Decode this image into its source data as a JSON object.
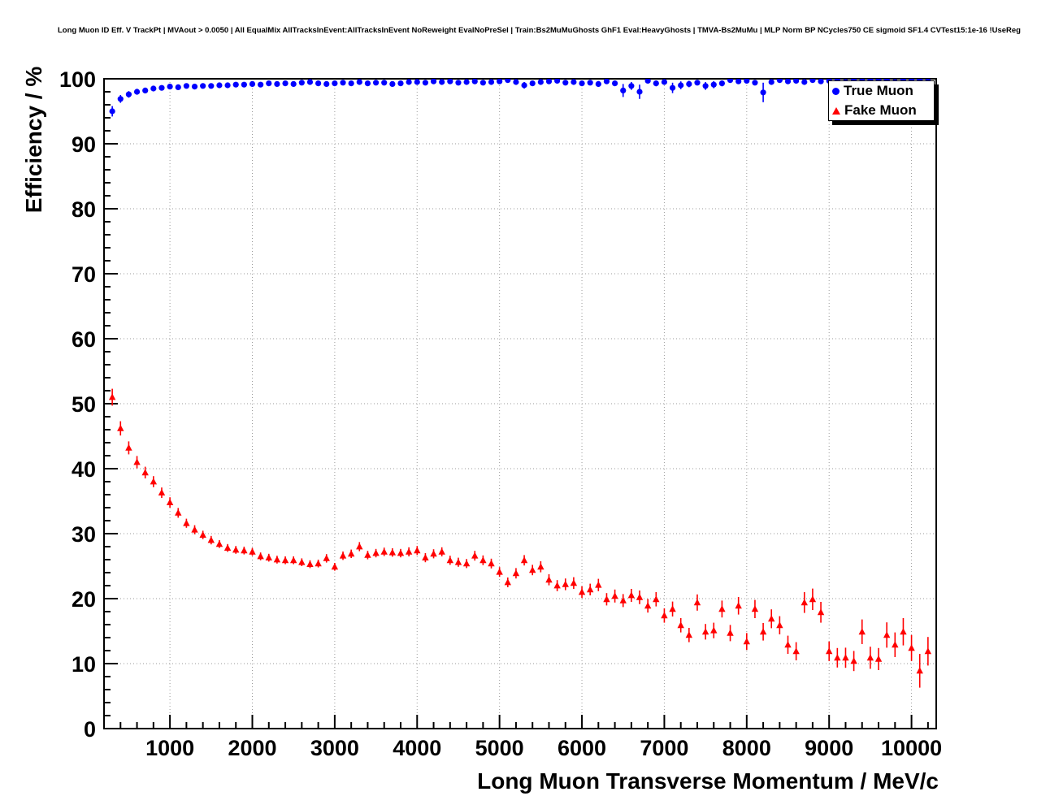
{
  "header": "Long Muon ID Eff. V TrackPt | MVAout > 0.0050 | All EqualMix AllTracksInEvent:AllTracksInEvent NoReweight EvalNoPreSel | Train:Bs2MuMuGhosts GhF1 Eval:HeavyGhosts | TMVA-Bs2MuMu | MLP Norm BP NCycles750 CE sigmoid SF1.4 CVTest15:1e-16 !UseReg",
  "chart_data": {
    "type": "scatter",
    "title": "",
    "xlabel": "Long Muon Transverse Momentum / MeV/c",
    "ylabel": "Efficiency / %",
    "xlim": [
      200,
      10300
    ],
    "ylim": [
      0,
      100
    ],
    "x_ticks": [
      1000,
      2000,
      3000,
      4000,
      5000,
      6000,
      7000,
      8000,
      9000,
      10000
    ],
    "y_ticks": [
      0,
      10,
      20,
      30,
      40,
      50,
      60,
      70,
      80,
      90,
      100
    ],
    "x_minor_step": 200,
    "y_minor_step": 2,
    "grid": true,
    "legend": {
      "position": "top-right",
      "entries": [
        {
          "label": "True Muon",
          "color": "#0000ff",
          "marker": "circle"
        },
        {
          "label": "Fake Muon",
          "color": "#ff0000",
          "marker": "triangle"
        }
      ]
    },
    "x": [
      300,
      400,
      500,
      600,
      700,
      800,
      900,
      1000,
      1100,
      1200,
      1300,
      1400,
      1500,
      1600,
      1700,
      1800,
      1900,
      2000,
      2100,
      2200,
      2300,
      2400,
      2500,
      2600,
      2700,
      2800,
      2900,
      3000,
      3100,
      3200,
      3300,
      3400,
      3500,
      3600,
      3700,
      3800,
      3900,
      4000,
      4100,
      4200,
      4300,
      4400,
      4500,
      4600,
      4700,
      4800,
      4900,
      5000,
      5100,
      5200,
      5300,
      5400,
      5500,
      5600,
      5700,
      5800,
      5900,
      6000,
      6100,
      6200,
      6300,
      6400,
      6500,
      6600,
      6700,
      6800,
      6900,
      7000,
      7100,
      7200,
      7300,
      7400,
      7500,
      7600,
      7700,
      7800,
      7900,
      8000,
      8100,
      8200,
      8300,
      8400,
      8500,
      8600,
      8700,
      8800,
      8900,
      9000,
      9100,
      9200,
      9300,
      9400,
      9500,
      9600,
      9700,
      9800,
      9900,
      10000,
      10100,
      10200
    ],
    "series": [
      {
        "name": "True Muon",
        "color": "#0000ff",
        "marker": "circle",
        "y": [
          95.0,
          96.9,
          97.6,
          98.0,
          98.2,
          98.5,
          98.6,
          98.8,
          98.7,
          98.9,
          98.8,
          98.9,
          98.9,
          99.0,
          99.0,
          99.1,
          99.1,
          99.2,
          99.1,
          99.3,
          99.2,
          99.3,
          99.2,
          99.4,
          99.5,
          99.3,
          99.2,
          99.3,
          99.4,
          99.3,
          99.5,
          99.3,
          99.4,
          99.4,
          99.2,
          99.3,
          99.5,
          99.5,
          99.4,
          99.6,
          99.5,
          99.6,
          99.4,
          99.5,
          99.6,
          99.4,
          99.5,
          99.6,
          99.8,
          99.5,
          99.0,
          99.3,
          99.5,
          99.6,
          99.7,
          99.4,
          99.5,
          99.3,
          99.4,
          99.2,
          99.6,
          99.3,
          98.2,
          98.9,
          98.0,
          99.7,
          99.3,
          99.5,
          98.6,
          99.0,
          99.2,
          99.4,
          98.9,
          99.1,
          99.3,
          99.8,
          99.6,
          99.7,
          99.4,
          97.9,
          99.5,
          99.8,
          99.6,
          99.7,
          99.5,
          99.8,
          99.6,
          99.7,
          99.9,
          99.5,
          99.8,
          99.6,
          99.9,
          99.7,
          99.8,
          99.5,
          99.9,
          99.7,
          99.8,
          99.6
        ],
        "err": [
          0.8,
          0.6,
          0.5,
          0.45,
          0.4,
          0.35,
          0.35,
          0.3,
          0.3,
          0.3,
          0.3,
          0.3,
          0.25,
          0.25,
          0.25,
          0.25,
          0.25,
          0.25,
          0.25,
          0.25,
          0.25,
          0.25,
          0.25,
          0.25,
          0.25,
          0.25,
          0.25,
          0.25,
          0.25,
          0.25,
          0.25,
          0.25,
          0.25,
          0.25,
          0.3,
          0.3,
          0.25,
          0.25,
          0.3,
          0.25,
          0.3,
          0.25,
          0.3,
          0.3,
          0.25,
          0.3,
          0.3,
          0.25,
          0.2,
          0.3,
          0.5,
          0.4,
          0.3,
          0.3,
          0.25,
          0.35,
          0.3,
          0.4,
          0.35,
          0.45,
          0.3,
          0.4,
          1.0,
          0.6,
          1.1,
          0.2,
          0.45,
          0.35,
          0.8,
          0.6,
          0.5,
          0.4,
          0.6,
          0.55,
          0.45,
          0.2,
          0.3,
          0.25,
          0.4,
          1.5,
          0.35,
          0.2,
          0.3,
          0.25,
          0.35,
          0.2,
          0.3,
          0.25,
          0.15,
          0.4,
          0.2,
          0.3,
          0.15,
          0.25,
          0.2,
          0.35,
          0.15,
          0.25,
          0.2,
          0.3
        ]
      },
      {
        "name": "Fake Muon",
        "color": "#ff0000",
        "marker": "triangle",
        "y": [
          51.0,
          46.2,
          43.2,
          41.0,
          39.4,
          38.0,
          36.3,
          34.8,
          33.2,
          31.6,
          30.6,
          29.8,
          29.0,
          28.4,
          27.8,
          27.5,
          27.4,
          27.2,
          26.5,
          26.3,
          26.0,
          25.9,
          25.9,
          25.6,
          25.3,
          25.4,
          26.2,
          24.9,
          26.6,
          26.9,
          28.0,
          26.7,
          27.0,
          27.2,
          27.1,
          27.0,
          27.2,
          27.4,
          26.3,
          26.9,
          27.2,
          25.9,
          25.6,
          25.4,
          26.6,
          25.9,
          25.4,
          24.1,
          22.5,
          23.9,
          25.9,
          24.4,
          24.9,
          22.9,
          22.0,
          22.2,
          22.4,
          21.0,
          21.4,
          22.1,
          19.9,
          20.4,
          19.7,
          20.5,
          20.2,
          18.9,
          19.9,
          17.4,
          18.4,
          15.9,
          14.4,
          19.4,
          14.9,
          15.1,
          18.4,
          14.7,
          18.9,
          13.4,
          18.4,
          14.9,
          16.9,
          15.9,
          12.9,
          11.9,
          19.4,
          19.9,
          17.9,
          11.9,
          10.9,
          10.9,
          10.4,
          14.9,
          10.9,
          10.7,
          14.4,
          12.9,
          14.9,
          12.4,
          8.9,
          11.9
        ],
        "err": [
          1.3,
          1.1,
          1.0,
          0.95,
          0.9,
          0.85,
          0.8,
          0.8,
          0.75,
          0.7,
          0.7,
          0.65,
          0.65,
          0.6,
          0.6,
          0.6,
          0.6,
          0.6,
          0.6,
          0.6,
          0.6,
          0.6,
          0.6,
          0.6,
          0.6,
          0.6,
          0.65,
          0.6,
          0.65,
          0.65,
          0.7,
          0.65,
          0.65,
          0.65,
          0.65,
          0.65,
          0.7,
          0.7,
          0.7,
          0.7,
          0.7,
          0.7,
          0.7,
          0.7,
          0.75,
          0.75,
          0.75,
          0.75,
          0.75,
          0.8,
          0.8,
          0.8,
          0.85,
          0.85,
          0.85,
          0.9,
          0.9,
          0.9,
          0.9,
          0.95,
          0.95,
          1.0,
          1.0,
          1.0,
          1.05,
          1.05,
          1.1,
          1.1,
          1.15,
          1.1,
          1.1,
          1.25,
          1.2,
          1.2,
          1.3,
          1.25,
          1.35,
          1.3,
          1.4,
          1.35,
          1.45,
          1.4,
          1.4,
          1.4,
          1.6,
          1.65,
          1.6,
          1.5,
          1.5,
          1.55,
          1.55,
          1.9,
          1.7,
          1.7,
          1.95,
          1.9,
          2.1,
          2.0,
          2.6,
          2.2
        ]
      }
    ]
  }
}
